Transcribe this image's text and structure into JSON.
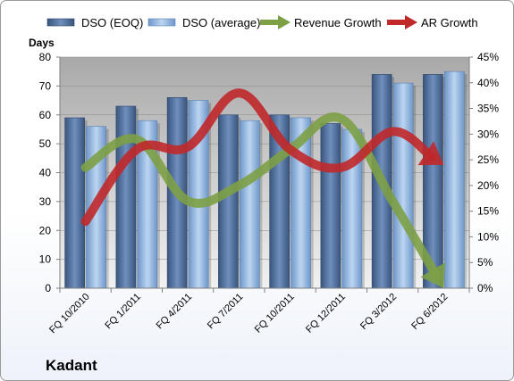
{
  "company": "Kadant",
  "chart_data": {
    "type": "bar",
    "y_title": "Days",
    "categories": [
      "FQ 10/2010",
      "FQ 1/2011",
      "FQ 4/2011",
      "FQ 7/2011",
      "FQ 10/2011",
      "FQ 12/2011",
      "FQ 3/2012",
      "FQ 6/2012"
    ],
    "ylim_left": [
      0,
      80
    ],
    "yticks_left": [
      "0",
      "10",
      "20",
      "30",
      "40",
      "50",
      "60",
      "70",
      "80"
    ],
    "ylim_right": [
      0,
      45
    ],
    "yticks_right": [
      "0%",
      "5%",
      "10%",
      "15%",
      "20%",
      "25%",
      "30%",
      "35%",
      "40%",
      "45%"
    ],
    "bar_series": [
      {
        "name": "DSO (EOQ)",
        "color": "#4a6b9a",
        "values": [
          59,
          63,
          66,
          60,
          60,
          57,
          74,
          74
        ]
      },
      {
        "name": "DSO (average)",
        "color": "#8fb3df",
        "values": [
          56,
          58,
          65,
          58,
          59,
          55,
          71,
          75
        ]
      }
    ],
    "line_series": [
      {
        "name": "Revenue Growth",
        "color": "#7da046",
        "values": [
          23.5,
          29,
          17,
          20,
          27,
          33,
          17,
          0
        ]
      },
      {
        "name": "AR Growth",
        "color": "#c0282a",
        "values": [
          13,
          27,
          27.5,
          38,
          27,
          23.5,
          30.5,
          24
        ]
      }
    ],
    "grid": true,
    "legend": "top"
  }
}
